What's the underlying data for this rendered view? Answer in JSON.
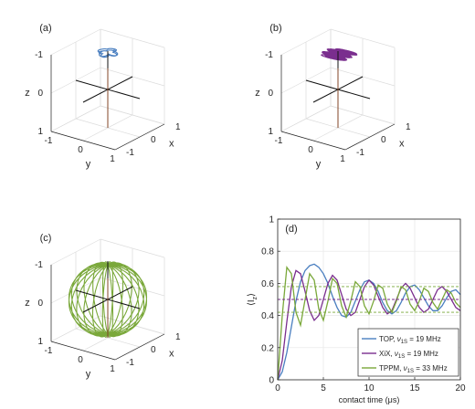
{
  "figure": {
    "panels3d": [
      {
        "label": "(a)",
        "xlabel": "x",
        "ylabel": "y",
        "zlabel": "z",
        "x_ticks": [
          "-1",
          "0",
          "1"
        ],
        "y_ticks": [
          "-1",
          "0",
          "1"
        ],
        "z_ticks": [
          "-1",
          "0",
          "1"
        ]
      },
      {
        "label": "(b)",
        "xlabel": "x",
        "ylabel": "y",
        "zlabel": "z",
        "x_ticks": [
          "-1",
          "0",
          "1"
        ],
        "y_ticks": [
          "-1",
          "0",
          "1"
        ],
        "z_ticks": [
          "-1",
          "0",
          "1"
        ]
      },
      {
        "label": "(c)",
        "xlabel": "x",
        "ylabel": "y",
        "zlabel": "z",
        "x_ticks": [
          "-1",
          "0",
          "1"
        ],
        "y_ticks": [
          "-1",
          "0",
          "1"
        ],
        "z_ticks": [
          "-1",
          "0",
          "1"
        ]
      }
    ],
    "panel_d": {
      "label": "(d)",
      "xlabel": "contact time (μs)",
      "ylabel_main": "⟨I",
      "ylabel_sub": "z",
      "ylabel_close": "⟩",
      "x_ticks": [
        "0",
        "5",
        "10",
        "15",
        "20"
      ],
      "y_ticks": [
        "0",
        "0.2",
        "0.4",
        "0.6",
        "0.8",
        "1"
      ],
      "legend": [
        {
          "name": "TOP, ",
          "nu": "ν",
          "sub": "1S",
          "rest": " = 19 MHz"
        },
        {
          "name": "XiX, ",
          "nu": "ν",
          "sub": "1S",
          "rest": " = 19 MHz"
        },
        {
          "name": "TPPM, ",
          "nu": "ν",
          "sub": "1S",
          "rest": " = 33 MHz"
        }
      ]
    }
  },
  "chart_data": [
    {
      "type": "line",
      "panel": "(a)",
      "projection": "3d",
      "xlim": [
        -1,
        1
      ],
      "ylim": [
        -1,
        1
      ],
      "zlim": [
        -1,
        1
      ],
      "grid": true,
      "colors": {
        "trajectory": "#4a7fc0",
        "axes_lines": "#000000",
        "z_axis_line": "#a0522d"
      },
      "series": [
        {
          "shape": "four-lobed rosette near the top of the sphere",
          "z_level": 0.95
        }
      ]
    },
    {
      "type": "line",
      "panel": "(b)",
      "projection": "3d",
      "xlim": [
        -1,
        1
      ],
      "ylim": [
        -1,
        1
      ],
      "zlim": [
        -1,
        1
      ],
      "grid": true,
      "colors": {
        "trajectory": "#7a2e8e",
        "axes_lines": "#000000",
        "z_axis_line": "#a0522d"
      },
      "series": [
        {
          "shape": "stack of tilted loops near the top of the sphere",
          "z_level": 0.9
        }
      ]
    },
    {
      "type": "line",
      "panel": "(c)",
      "projection": "3d",
      "xlim": [
        -1,
        1
      ],
      "ylim": [
        -1,
        1
      ],
      "zlim": [
        -1,
        1
      ],
      "grid": true,
      "colors": {
        "trajectory": "#7aa83a",
        "axes_lines": "#000000",
        "z_axis_line": "#a0522d"
      },
      "series": [
        {
          "shape": "meridian loops covering the unit sphere",
          "z_range": [
            -1,
            1
          ]
        }
      ]
    },
    {
      "type": "line",
      "panel": "(d)",
      "xlabel": "contact time (μs)",
      "xlim": [
        0,
        20
      ],
      "ylim": [
        0,
        1
      ],
      "grid": true,
      "legend_position": "bottom-right",
      "series": [
        {
          "name": "TOP, ν1S = 19 MHz",
          "color": "#4a7fc0",
          "style": "solid",
          "x": [
            0,
            0.5,
            1,
            1.5,
            2,
            2.5,
            3,
            3.5,
            4,
            4.5,
            5,
            5.5,
            6,
            6.5,
            7,
            7.5,
            8,
            8.5,
            9,
            9.5,
            10,
            10.5,
            11,
            11.5,
            12,
            12.5,
            13,
            13.5,
            14,
            14.5,
            15,
            15.5,
            16,
            16.5,
            17,
            17.5,
            18,
            18.5,
            19,
            19.5,
            20
          ],
          "y": [
            0.0,
            0.05,
            0.17,
            0.33,
            0.49,
            0.61,
            0.68,
            0.71,
            0.72,
            0.7,
            0.66,
            0.6,
            0.52,
            0.45,
            0.4,
            0.39,
            0.42,
            0.49,
            0.56,
            0.61,
            0.62,
            0.6,
            0.55,
            0.48,
            0.43,
            0.41,
            0.43,
            0.48,
            0.54,
            0.58,
            0.59,
            0.56,
            0.51,
            0.46,
            0.43,
            0.43,
            0.46,
            0.51,
            0.55,
            0.56,
            0.53
          ]
        },
        {
          "name": "XiX, ν1S = 19 MHz",
          "color": "#7a2e8e",
          "style": "solid",
          "x": [
            0,
            0.5,
            1,
            1.5,
            2,
            2.5,
            3,
            3.5,
            4,
            4.5,
            5,
            5.5,
            6,
            6.5,
            7,
            7.5,
            8,
            8.5,
            9,
            9.5,
            10,
            10.5,
            11,
            11.5,
            12,
            12.5,
            13,
            13.5,
            14,
            14.5,
            15,
            15.5,
            16,
            16.5,
            17,
            17.5,
            18,
            18.5,
            19,
            19.5,
            20
          ],
          "y": [
            0.0,
            0.12,
            0.36,
            0.58,
            0.68,
            0.66,
            0.55,
            0.43,
            0.37,
            0.4,
            0.5,
            0.6,
            0.65,
            0.62,
            0.53,
            0.44,
            0.4,
            0.42,
            0.5,
            0.58,
            0.62,
            0.59,
            0.52,
            0.45,
            0.41,
            0.43,
            0.5,
            0.57,
            0.6,
            0.57,
            0.51,
            0.45,
            0.42,
            0.44,
            0.5,
            0.56,
            0.58,
            0.55,
            0.5,
            0.45,
            0.43
          ]
        },
        {
          "name": "TPPM, ν1S = 33 MHz",
          "color": "#7aa83a",
          "style": "solid",
          "x": [
            0,
            0.5,
            1,
            1.5,
            2,
            2.5,
            3,
            3.5,
            4,
            4.5,
            5,
            5.5,
            6,
            6.5,
            7,
            7.5,
            8,
            8.5,
            9,
            9.5,
            10,
            10.5,
            11,
            11.5,
            12,
            12.5,
            13,
            13.5,
            14,
            14.5,
            15,
            15.5,
            16,
            16.5,
            17,
            17.5,
            18,
            18.5,
            19,
            19.5,
            20
          ],
          "y": [
            0.0,
            0.4,
            0.7,
            0.66,
            0.42,
            0.34,
            0.5,
            0.66,
            0.62,
            0.44,
            0.37,
            0.49,
            0.63,
            0.6,
            0.46,
            0.39,
            0.49,
            0.61,
            0.58,
            0.46,
            0.41,
            0.49,
            0.59,
            0.57,
            0.47,
            0.42,
            0.49,
            0.58,
            0.56,
            0.47,
            0.43,
            0.49,
            0.57,
            0.55,
            0.48,
            0.44,
            0.5,
            0.56,
            0.54,
            0.48,
            0.45
          ]
        },
        {
          "name": "",
          "color": "#4a7fc0",
          "style": "dashed",
          "x": [
            0,
            20
          ],
          "y": [
            0.5,
            0.5
          ]
        },
        {
          "name": "",
          "color": "#7a2e8e",
          "style": "dashed",
          "x": [
            0,
            20
          ],
          "y": [
            0.5,
            0.5
          ]
        },
        {
          "name": "",
          "color": "#7aa83a",
          "style": "dashed",
          "x": [
            0,
            20
          ],
          "y": [
            0.42,
            0.42
          ]
        },
        {
          "name": "",
          "color": "#7aa83a",
          "style": "dashed",
          "x": [
            0,
            20
          ],
          "y": [
            0.58,
            0.58
          ]
        }
      ]
    }
  ]
}
